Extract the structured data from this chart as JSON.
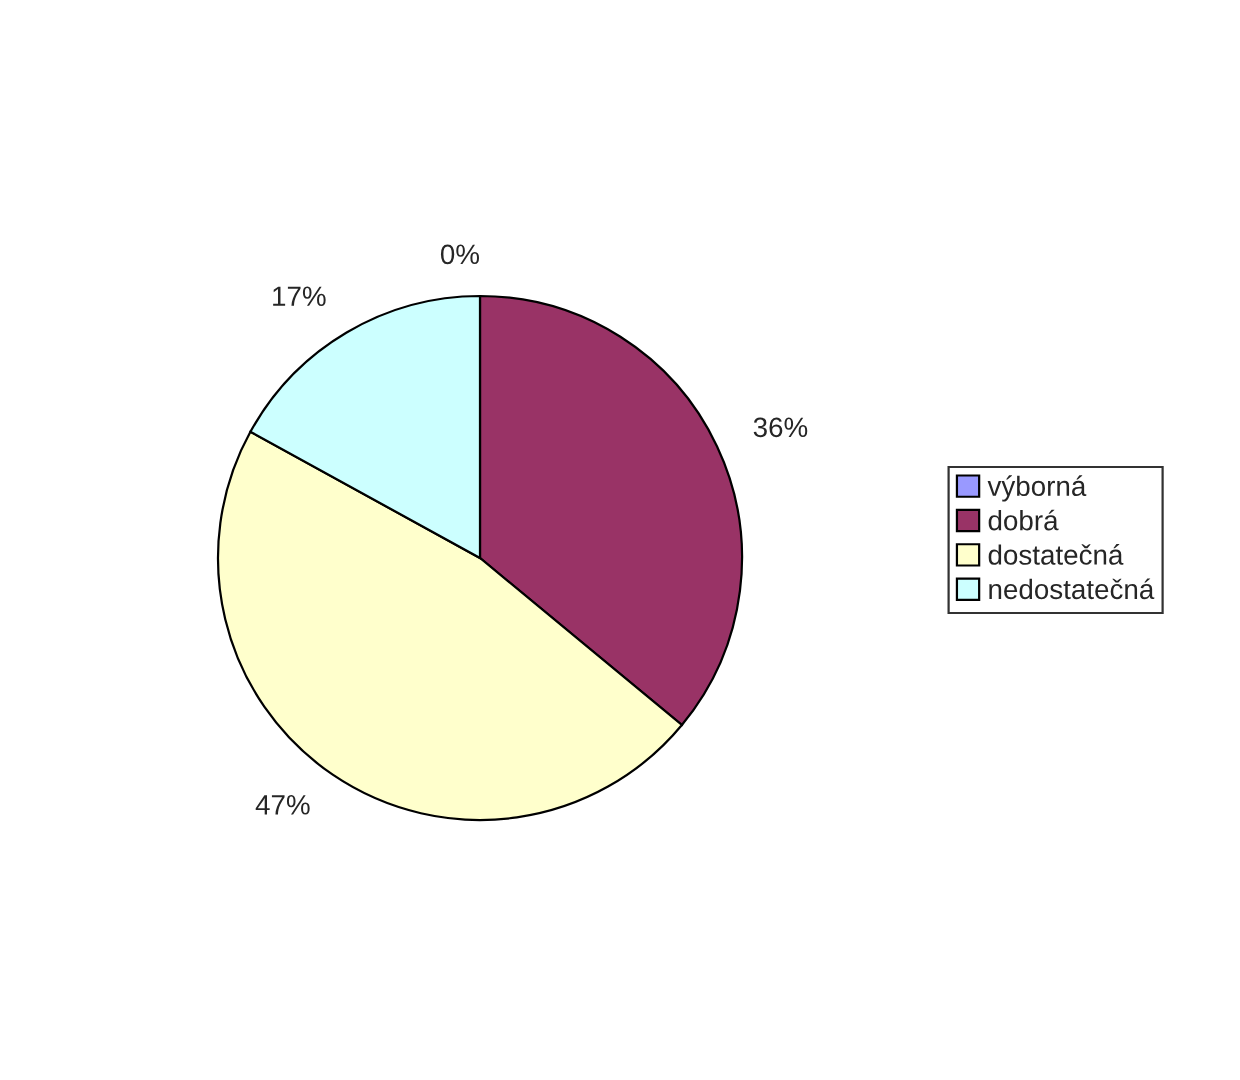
{
  "chart_data": {
    "type": "pie",
    "categories": [
      "výborná",
      "dobrá",
      "dostatečná",
      "nedostatečná"
    ],
    "values": [
      0,
      36,
      47,
      17
    ],
    "colors": [
      "#9999ff",
      "#993366",
      "#ffffcc",
      "#ccffff"
    ],
    "value_labels": [
      "0%",
      "36%",
      "47%",
      "17%"
    ],
    "legend": "right"
  }
}
